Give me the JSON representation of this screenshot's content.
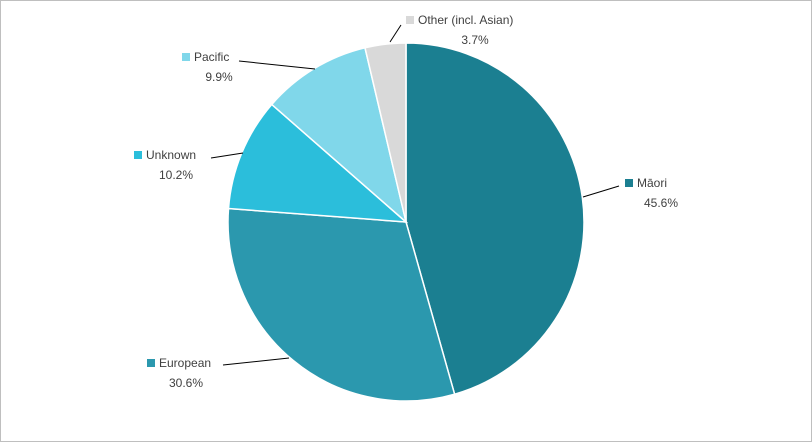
{
  "chart_data": {
    "type": "pie",
    "title": "",
    "slices": [
      {
        "name": "Māori",
        "value": 45.6,
        "label": "45.6%",
        "color": "#1b7f91"
      },
      {
        "name": "European",
        "value": 30.6,
        "label": "30.6%",
        "color": "#2b98ae"
      },
      {
        "name": "Unknown",
        "value": 10.2,
        "label": "10.2%",
        "color": "#2bbedb"
      },
      {
        "name": "Pacific",
        "value": 9.9,
        "label": "9.9%",
        "color": "#80d7ea"
      },
      {
        "name": "Other (incl. Asian)",
        "value": 3.7,
        "label": "3.7%",
        "color": "#d9d9d9"
      }
    ]
  }
}
